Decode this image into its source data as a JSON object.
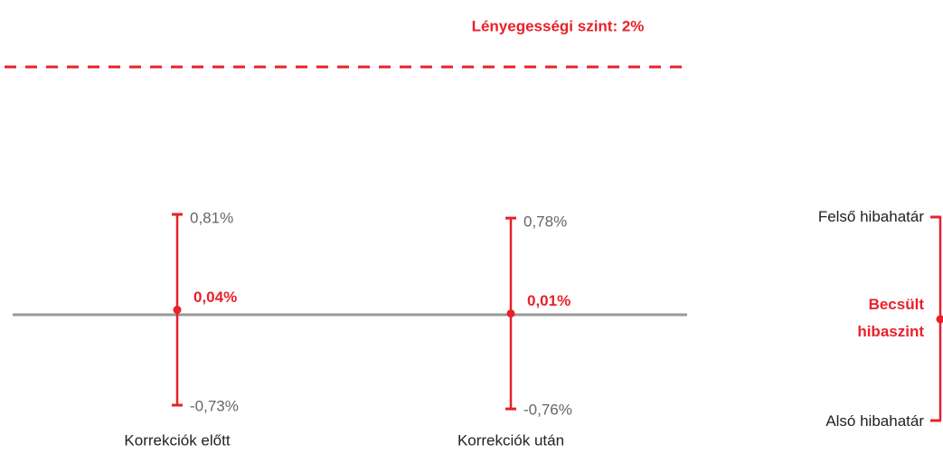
{
  "chart_data": {
    "type": "errorbar",
    "threshold": {
      "label": "Lényegességi szint: 2%",
      "value": 2,
      "color": "#e8212a"
    },
    "categories": [
      "Korrekciók előtt",
      "Korrekciók után"
    ],
    "series": [
      {
        "name": "Becsült hibaszint",
        "role": "estimate",
        "color": "#e8212a",
        "values": [
          0.04,
          0.01
        ],
        "value_labels": [
          "0,04%",
          "0,01%"
        ]
      },
      {
        "name": "Felső hibahatár",
        "role": "upper",
        "color": "#e8212a",
        "values": [
          0.81,
          0.78
        ],
        "value_labels": [
          "0,81%",
          "0,78%"
        ]
      },
      {
        "name": "Alsó hibahatár",
        "role": "lower",
        "color": "#e8212a",
        "values": [
          -0.73,
          -0.76
        ],
        "value_labels": [
          "-0,73%",
          "-0,76%"
        ]
      }
    ],
    "ylim": [
      -1,
      2.5
    ]
  }
}
